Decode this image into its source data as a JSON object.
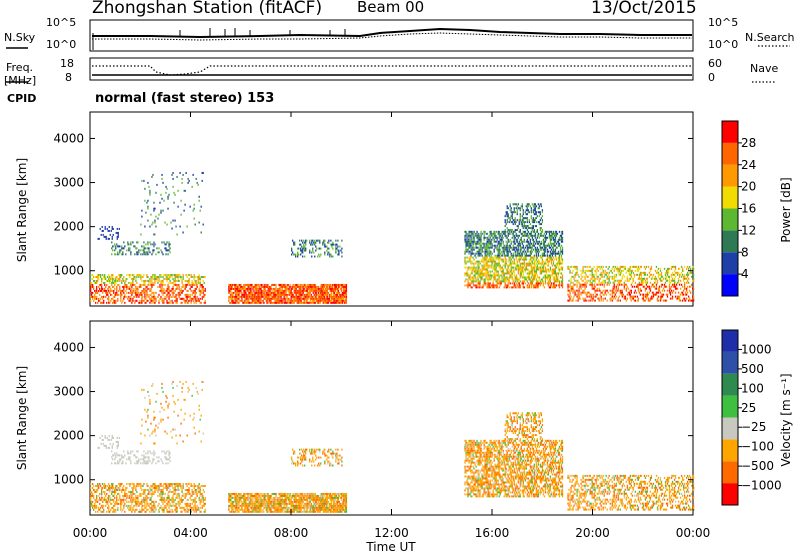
{
  "header": {
    "title": "Zhongshan Station (fitACF)",
    "beam": "Beam 00",
    "date": "13/Oct/2015"
  },
  "status_panels": {
    "nsky_label": "N.Sky",
    "nsky_ticks": [
      "10^5",
      "10^0"
    ],
    "nsearch_label": "N.Search",
    "nsearch_ticks": [
      "10^5",
      "10^0"
    ],
    "freq_label_1": "Freq.",
    "freq_label_2": "[MHz]",
    "freq_ticks": [
      "18",
      "8"
    ],
    "nave_label": "Nave",
    "nave_ticks": [
      "60",
      "0"
    ],
    "cpid_label": "CPID",
    "cpid_value": "normal (fast stereo) 153"
  },
  "colors": {
    "power": [
      "#0000ff",
      "#1e3ea8",
      "#2f7a55",
      "#5cb832",
      "#f0dc00",
      "#ff9900",
      "#ff6600",
      "#ff0000"
    ],
    "velocity": [
      "#ff0000",
      "#ff6a00",
      "#ffa500",
      "#c8c8c0",
      "#3fbf3f",
      "#2f8a50",
      "#2f50a8",
      "#1e2ea8"
    ]
  },
  "chart_data": [
    {
      "type": "heatmap",
      "name": "power",
      "ylabel": "Slant Range [km]",
      "y_ticks": [
        1000,
        2000,
        3000,
        4000
      ],
      "ylim": [
        200,
        4600
      ],
      "xlim": [
        0,
        24
      ],
      "x_ticks": [
        "00:00",
        "04:00",
        "08:00",
        "12:00",
        "16:00",
        "20:00",
        "00:00"
      ],
      "colorbar_label": "Power [dB]",
      "colorbar_ticks": [
        "28",
        "24",
        "20",
        "16",
        "12",
        "8",
        "4"
      ],
      "clusters": [
        {
          "t0": 0.0,
          "t1": 4.6,
          "r0": 250,
          "r1": 900,
          "p": 0.45
        },
        {
          "t0": 0.3,
          "t1": 1.2,
          "r0": 1700,
          "r1": 2000,
          "p": 0.15
        },
        {
          "t0": 0.8,
          "t1": 3.2,
          "r0": 1350,
          "r1": 1650,
          "p": 0.3
        },
        {
          "t0": 5.5,
          "t1": 10.2,
          "r0": 250,
          "r1": 700,
          "p": 0.8
        },
        {
          "t0": 8.0,
          "t1": 10.0,
          "r0": 1300,
          "r1": 1700,
          "p": 0.3
        },
        {
          "t0": 14.9,
          "t1": 18.8,
          "r0": 600,
          "r1": 1900,
          "p": 0.6
        },
        {
          "t0": 16.5,
          "t1": 18.0,
          "r0": 1900,
          "r1": 2500,
          "p": 0.4
        },
        {
          "t0": 19.0,
          "t1": 24.0,
          "r0": 300,
          "r1": 1100,
          "p": 0.4
        },
        {
          "t0": 2.0,
          "t1": 4.5,
          "r0": 1800,
          "r1": 3200,
          "p": 0.05
        }
      ]
    },
    {
      "type": "heatmap",
      "name": "velocity",
      "ylabel": "Slant Range [km]",
      "y_ticks": [
        1000,
        2000,
        3000,
        4000
      ],
      "ylim": [
        200,
        4600
      ],
      "xlim": [
        0,
        24
      ],
      "x_ticks": [
        "00:00",
        "04:00",
        "08:00",
        "12:00",
        "16:00",
        "20:00",
        "00:00"
      ],
      "xlabel": "Time UT",
      "colorbar_label": "Velocity [m s⁻¹]",
      "colorbar_ticks": [
        "1000",
        "500",
        "100",
        "25",
        "−25",
        "−100",
        "−500",
        "−1000"
      ]
    }
  ]
}
